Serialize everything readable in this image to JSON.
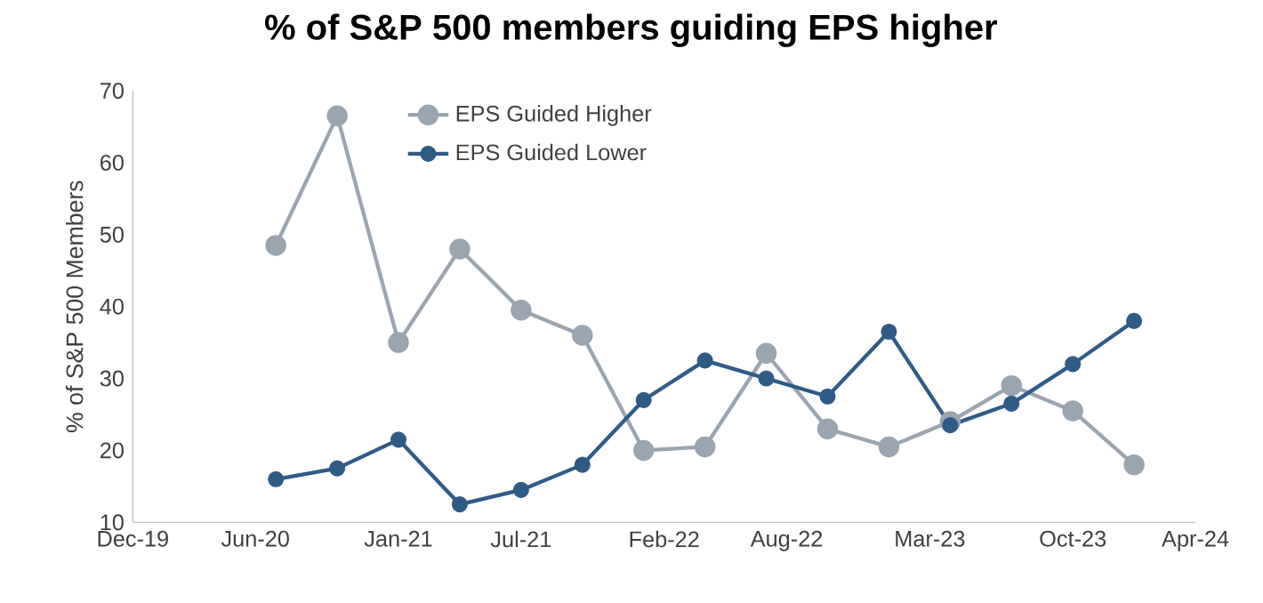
{
  "chart_data": {
    "type": "line",
    "title": "% of S&P 500 members guiding EPS higher",
    "ylabel": "% of S&P 500 Members",
    "x": [
      "2020-07",
      "2020-10",
      "2021-01",
      "2021-04",
      "2021-07",
      "2021-10",
      "2022-01",
      "2022-04",
      "2022-07",
      "2022-10",
      "2023-01",
      "2023-04",
      "2023-07",
      "2023-10",
      "2024-01"
    ],
    "series": [
      {
        "name": "EPS Guided Higher",
        "color": "#9ba5b0",
        "values": [
          48.5,
          66.5,
          35,
          48,
          39.5,
          36,
          20,
          20.5,
          33.5,
          23,
          20.5,
          24,
          29,
          25.5,
          18
        ]
      },
      {
        "name": "EPS Guided Lower",
        "color": "#2f5b87",
        "values": [
          16,
          17.5,
          21.5,
          12.5,
          14.5,
          18,
          27,
          32.5,
          30,
          27.5,
          36.5,
          23.5,
          26.5,
          32,
          38
        ]
      }
    ],
    "xlim": [
      "2019-12",
      "2024-04"
    ],
    "xticks": [
      {
        "value": "2019-12",
        "label": "Dec-19"
      },
      {
        "value": "2020-06",
        "label": "Jun-20"
      },
      {
        "value": "2021-01",
        "label": "Jan-21"
      },
      {
        "value": "2021-07",
        "label": "Jul-21"
      },
      {
        "value": "2022-02",
        "label": "Feb-22"
      },
      {
        "value": "2022-08",
        "label": "Aug-22"
      },
      {
        "value": "2023-03",
        "label": "Mar-23"
      },
      {
        "value": "2023-10",
        "label": "Oct-23"
      },
      {
        "value": "2024-04",
        "label": "Apr-24"
      }
    ],
    "ylim": [
      10,
      70
    ],
    "yticks": [
      10,
      20,
      30,
      40,
      50,
      60,
      70
    ],
    "legend": "top left",
    "marker": "circle",
    "line_style": "solid",
    "grid": false
  }
}
